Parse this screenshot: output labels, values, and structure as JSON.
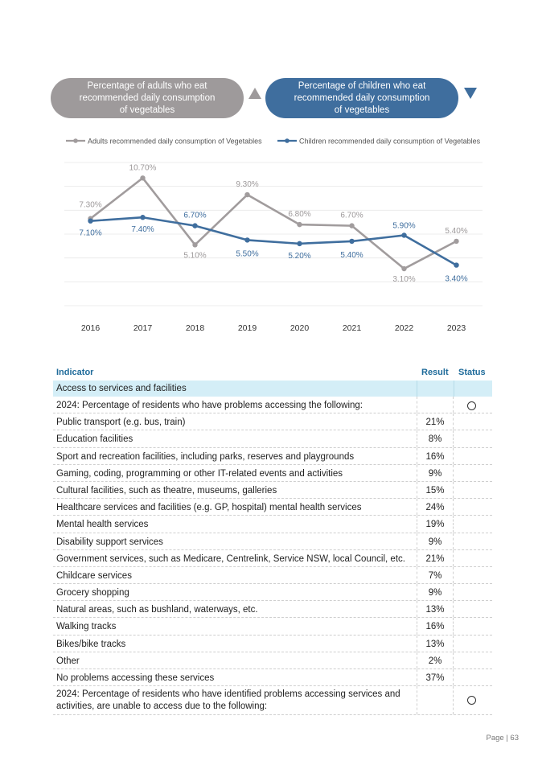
{
  "pills": {
    "adults": "Percentage of adults who eat\nrecommended daily consumption\nof vegetables",
    "children": "Percentage of children who eat\nrecommended daily consumption\nof vegetables"
  },
  "chart_data": {
    "type": "line",
    "x": [
      "2016",
      "2017",
      "2018",
      "2019",
      "2020",
      "2021",
      "2022",
      "2023"
    ],
    "series": [
      {
        "name": "Adults recommended daily consumption of Vegetables",
        "color": "#a19c9d",
        "values": [
          7.3,
          10.7,
          5.1,
          9.3,
          6.8,
          6.7,
          3.1,
          5.4
        ],
        "labels": [
          "7.30%",
          "10.70%",
          "5.10%",
          "9.30%",
          "6.80%",
          "6.70%",
          "3.10%",
          "5.40%"
        ]
      },
      {
        "name": "Children recommended daily consumption of Vegetables",
        "color": "#3f6e9e",
        "values": [
          7.1,
          7.4,
          6.7,
          5.5,
          5.2,
          5.4,
          5.9,
          3.4
        ],
        "labels": [
          "7.10%",
          "7.40%",
          "6.70%",
          "5.50%",
          "5.20%",
          "5.40%",
          "5.90%",
          "3.40%"
        ]
      }
    ],
    "ylim": [
      0,
      12
    ],
    "grid": true,
    "legend": "top"
  },
  "table": {
    "headers": {
      "indicator": "Indicator",
      "result": "Result",
      "status": "Status"
    },
    "section": "Access to services and facilities",
    "rows": [
      {
        "label": "2024: Percentage of residents who have problems accessing the following:",
        "result": ""
      },
      {
        "label": "Public transport (e.g. bus, train)",
        "result": "21%"
      },
      {
        "label": "Education facilities",
        "result": "8%"
      },
      {
        "label": "Sport and recreation facilities, including parks, reserves and playgrounds",
        "result": "16%"
      },
      {
        "label": "Gaming, coding, programming or other IT-related events and activities",
        "result": "9%"
      },
      {
        "label": "Cultural facilities, such as theatre, museums, galleries",
        "result": "15%"
      },
      {
        "label": "Healthcare services and facilities (e.g. GP, hospital) mental health services",
        "result": "24%"
      },
      {
        "label": "Mental health services",
        "result": "19%"
      },
      {
        "label": "Disability support services",
        "result": "9%"
      },
      {
        "label": "Government services, such as Medicare, Centrelink, Service NSW, local Council, etc.",
        "result": "21%"
      },
      {
        "label": "Childcare services",
        "result": "7%"
      },
      {
        "label": "Grocery shopping",
        "result": "9%"
      },
      {
        "label": "Natural areas, such as bushland, waterways, etc.",
        "result": "13%"
      },
      {
        "label": "Walking tracks",
        "result": "16%"
      },
      {
        "label": "Bikes/bike tracks",
        "result": "13%"
      },
      {
        "label": "Other",
        "result": "2%"
      },
      {
        "label": "No problems accessing these services",
        "result": "37%"
      },
      {
        "label": "2024: Percentage of residents who have identified problems accessing services and activities, are unable to access due to the following:",
        "result": ""
      }
    ]
  },
  "footer": "Page | 63"
}
